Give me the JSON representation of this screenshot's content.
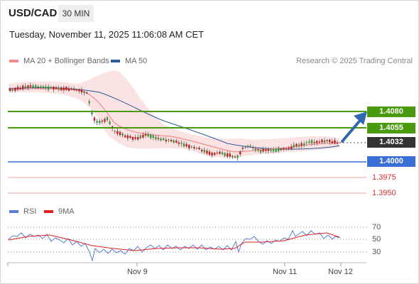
{
  "header": {
    "symbol": "USD/CAD",
    "interval": "30 MIN",
    "timestamp": "Tuesday, November 11, 2025 11:06:08 AM CET"
  },
  "legend": {
    "ma20": "MA 20 + Bollinger Bands",
    "ma50": "MA 50",
    "credit": "Research © 2025 Trading Central",
    "rsi": "RSI",
    "rsi_ma": "9MA"
  },
  "levels": {
    "r2": "1.4080",
    "r1": "1.4055",
    "current": "1.4032",
    "pivot": "1.4000",
    "s1": "1.3975",
    "s2": "1.3950"
  },
  "rsi_ticks": {
    "t70": "70",
    "t50": "50",
    "t30": "30"
  },
  "dates": {
    "d1": "Nov 9",
    "d2": "Nov 11",
    "d3": "Nov 12"
  },
  "colors": {
    "resistance": "#4a9a0f",
    "pivot": "#3a6fd8",
    "support": "#d93030",
    "current": "#333333",
    "arrow": "#2f68b0",
    "ma20": "#f08b8b",
    "ma50": "#2e5b9c",
    "rsi": "#5a7ed8",
    "rsi_ma": "#e02020"
  },
  "icons": {
    "direction": "up-arrow-icon"
  }
}
